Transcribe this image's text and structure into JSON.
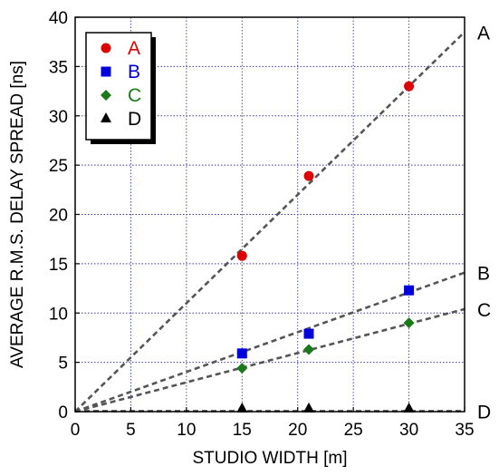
{
  "chart_data": {
    "type": "scatter",
    "xlabel": "STUDIO WIDTH [m]",
    "ylabel": "AVERAGE R.M.S. DELAY SPREAD [ns]",
    "xlim": [
      0,
      35
    ],
    "ylim": [
      0,
      40
    ],
    "xticks": [
      0,
      5,
      10,
      15,
      20,
      25,
      30,
      35
    ],
    "yticks": [
      0,
      5,
      10,
      15,
      20,
      25,
      30,
      35,
      40
    ],
    "grid": true,
    "grid_style": "dotted",
    "legend_position": "top-left",
    "series": [
      {
        "name": "A",
        "color": "#dd0000",
        "marker": "circle",
        "points": [
          {
            "x": 15,
            "y": 15.8
          },
          {
            "x": 21,
            "y": 23.9
          },
          {
            "x": 30,
            "y": 33.0
          }
        ],
        "fit_line": {
          "x0": 0,
          "y0": 0,
          "x1": 35,
          "y1": 38.5
        },
        "end_label": "A"
      },
      {
        "name": "B",
        "color": "#0000dd",
        "marker": "square",
        "points": [
          {
            "x": 15,
            "y": 5.9
          },
          {
            "x": 21,
            "y": 7.9
          },
          {
            "x": 30,
            "y": 12.3
          }
        ],
        "fit_line": {
          "x0": 0,
          "y0": 0,
          "x1": 35,
          "y1": 14.1
        },
        "end_label": "B"
      },
      {
        "name": "C",
        "color": "#1a7a1a",
        "marker": "diamond",
        "points": [
          {
            "x": 15,
            "y": 4.4
          },
          {
            "x": 21,
            "y": 6.3
          },
          {
            "x": 30,
            "y": 9.0
          }
        ],
        "fit_line": {
          "x0": 0,
          "y0": 0,
          "x1": 35,
          "y1": 10.4
        },
        "end_label": "C"
      },
      {
        "name": "D",
        "color": "#000000",
        "marker": "triangle",
        "points": [
          {
            "x": 15,
            "y": 0.1
          },
          {
            "x": 21,
            "y": 0.1
          },
          {
            "x": 30,
            "y": 0.1
          }
        ],
        "fit_line": {
          "x0": 0,
          "y0": 0.05,
          "x1": 35,
          "y1": 0.05
        },
        "end_label": "D"
      }
    ],
    "fit_line_color": "#555555"
  }
}
